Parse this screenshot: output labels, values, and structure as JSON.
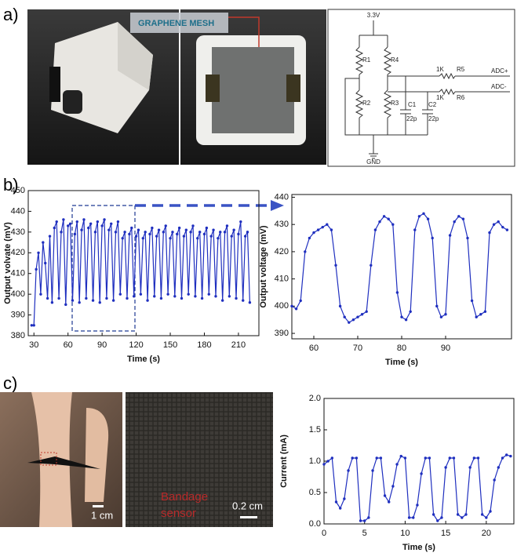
{
  "panel_labels": [
    "a)",
    "b)",
    "c)"
  ],
  "photos": {
    "mesh_label": "GRAPHENE MESH",
    "scale_bar_hand": "1 cm",
    "sensor_label": [
      "Bandage",
      "sensor"
    ],
    "scale_bar_fabric": "0.2 cm"
  },
  "circuit": {
    "supply": "3.3V",
    "r1": "R1",
    "r4": "R4",
    "r2": "R2",
    "r3": "R3",
    "r5_value": "1K",
    "r5": "R5",
    "r6_value": "1K",
    "r6": "R6",
    "adc_plus": "ADC+",
    "adc_minus": "ADC-",
    "c1": "C1",
    "c1_value": "22p",
    "c2": "C2",
    "c2_value": "22p",
    "ground": "GND"
  },
  "chart_data": [
    {
      "type": "line",
      "xlabel": "Time (s)",
      "ylabel": "Output volvate (mV)",
      "xlim": [
        25,
        228
      ],
      "xticks": [
        30,
        60,
        90,
        120,
        150,
        180,
        210
      ],
      "ylim": [
        380,
        450
      ],
      "yticks": [
        380,
        390,
        400,
        410,
        420,
        430,
        440,
        450
      ],
      "series": [
        {
          "color": "#1f2fbf",
          "x": [
            28,
            30,
            32,
            34,
            36,
            38,
            40,
            42,
            44,
            46,
            48,
            50,
            52,
            54,
            56,
            58,
            60,
            62,
            64,
            66,
            68,
            70,
            72,
            74,
            76,
            78,
            80,
            82,
            84,
            86,
            88,
            90,
            92,
            94,
            96,
            98,
            100,
            102,
            104,
            106,
            108,
            110,
            112,
            114,
            116,
            118,
            120,
            122,
            124,
            126,
            128,
            130,
            132,
            134,
            136,
            138,
            140,
            142,
            144,
            146,
            148,
            150,
            152,
            154,
            156,
            158,
            160,
            162,
            164,
            166,
            168,
            170,
            172,
            174,
            176,
            178,
            180,
            182,
            184,
            186,
            188,
            190,
            192,
            194,
            196,
            198,
            200,
            202,
            204,
            206,
            208,
            210,
            212,
            214,
            216,
            218,
            220
          ],
          "values": [
            385,
            385,
            412,
            420,
            400,
            425,
            415,
            398,
            428,
            396,
            432,
            435,
            398,
            430,
            436,
            395,
            433,
            434,
            397,
            429,
            435,
            396,
            431,
            436,
            398,
            432,
            434,
            397,
            430,
            435,
            396,
            433,
            436,
            398,
            431,
            434,
            397,
            430,
            435,
            400,
            427,
            430,
            398,
            429,
            432,
            399,
            428,
            431,
            400,
            427,
            430,
            397,
            429,
            432,
            399,
            428,
            431,
            398,
            430,
            433,
            400,
            427,
            430,
            399,
            429,
            432,
            398,
            428,
            431,
            400,
            430,
            433,
            399,
            427,
            430,
            398,
            429,
            432,
            400,
            428,
            431,
            399,
            427,
            430,
            397,
            430,
            433,
            399,
            428,
            431,
            398,
            429,
            435,
            397,
            428,
            430,
            396
          ]
        }
      ]
    },
    {
      "type": "line",
      "xlabel": "Time (s)",
      "ylabel": "Output voltage (mV)",
      "xlim": [
        55,
        105
      ],
      "xticks": [
        60,
        70,
        80,
        90
      ],
      "ylim": [
        388,
        441
      ],
      "yticks": [
        390,
        400,
        410,
        420,
        430,
        440
      ],
      "series": [
        {
          "color": "#1f2fbf",
          "x": [
            55,
            56,
            57,
            58,
            59,
            60,
            61,
            62,
            63,
            64,
            65,
            66,
            67,
            68,
            69,
            70,
            71,
            72,
            73,
            74,
            75,
            76,
            77,
            78,
            79,
            80,
            81,
            82,
            83,
            84,
            85,
            86,
            87,
            88,
            89,
            90,
            91,
            92,
            93,
            94,
            95,
            96,
            97,
            98,
            99,
            100,
            101,
            102,
            103,
            104
          ],
          "values": [
            400,
            399,
            402,
            420,
            425,
            427,
            428,
            429,
            430,
            428,
            415,
            400,
            396,
            394,
            395,
            396,
            397,
            398,
            415,
            428,
            431,
            433,
            432,
            430,
            405,
            396,
            395,
            398,
            428,
            433,
            434,
            432,
            425,
            400,
            396,
            397,
            426,
            431,
            433,
            432,
            425,
            402,
            396,
            397,
            398,
            427,
            430,
            431,
            429,
            428
          ]
        }
      ]
    },
    {
      "type": "line",
      "xlabel": "Time (s)",
      "ylabel": "Current (mA)",
      "xlim": [
        0,
        23.4
      ],
      "xticks": [
        0,
        5,
        10,
        15,
        20
      ],
      "ylim": [
        0,
        2
      ],
      "yticks": [
        {
          "value": 0,
          "label": "0.0"
        },
        {
          "value": 0.5,
          "label": "0.5"
        },
        {
          "value": 1,
          "label": "1.0"
        },
        {
          "value": 1.5,
          "label": "1.5"
        },
        {
          "value": 2,
          "label": "2.0"
        }
      ],
      "series": [
        {
          "color": "#1f2fbf",
          "x": [
            0,
            0.5,
            1,
            1.5,
            2,
            2.5,
            3,
            3.5,
            4,
            4.5,
            5,
            5.5,
            6,
            6.5,
            7,
            7.5,
            8,
            8.5,
            9,
            9.5,
            10,
            10.5,
            11,
            11.5,
            12,
            12.5,
            13,
            13.5,
            14,
            14.5,
            15,
            15.5,
            16,
            16.5,
            17,
            17.5,
            18,
            18.5,
            19,
            19.5,
            20,
            20.5,
            21,
            21.5,
            22,
            22.5,
            23
          ],
          "values": [
            0.95,
            1.0,
            1.05,
            0.35,
            0.25,
            0.4,
            0.85,
            1.05,
            1.05,
            0.05,
            0.05,
            0.1,
            0.85,
            1.05,
            1.05,
            0.45,
            0.35,
            0.6,
            0.95,
            1.08,
            1.05,
            0.1,
            0.1,
            0.3,
            0.8,
            1.05,
            1.05,
            0.15,
            0.05,
            0.1,
            0.9,
            1.05,
            1.05,
            0.15,
            0.1,
            0.15,
            0.9,
            1.05,
            1.05,
            0.15,
            0.1,
            0.2,
            0.7,
            0.9,
            1.05,
            1.1,
            1.08
          ]
        }
      ]
    }
  ]
}
